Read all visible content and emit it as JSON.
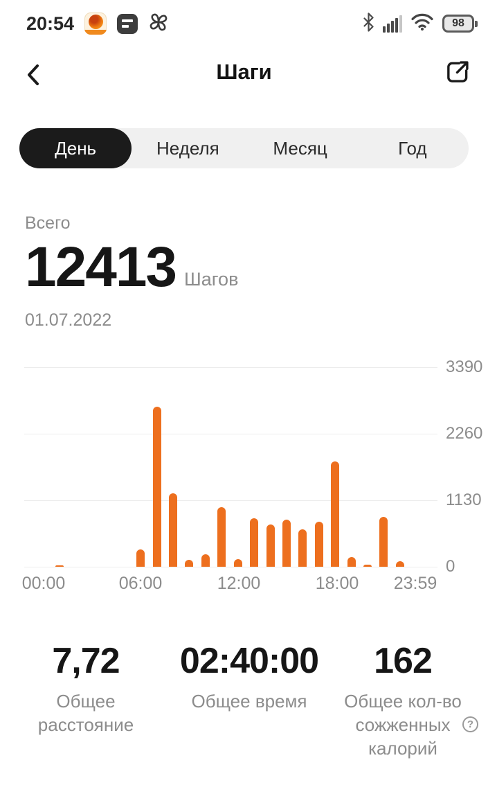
{
  "status_bar": {
    "time": "20:54",
    "battery_percent": "98",
    "icons_left": [
      "app-notification-icon",
      "messages-icon",
      "fan-icon"
    ],
    "icons_right": [
      "bluetooth-icon",
      "cell-signal-icon",
      "wifi-icon",
      "battery-icon"
    ]
  },
  "header": {
    "title": "Шаги",
    "back_icon": "back-chevron-icon",
    "share_icon": "share-icon"
  },
  "tabs": {
    "items": [
      {
        "label": "День",
        "selected": true
      },
      {
        "label": "Неделя",
        "selected": false
      },
      {
        "label": "Месяц",
        "selected": false
      },
      {
        "label": "Год",
        "selected": false
      }
    ]
  },
  "summary": {
    "label": "Всего",
    "total_steps": "12413",
    "unit": "Шагов",
    "date": "01.07.2022"
  },
  "chart_data": {
    "type": "bar",
    "x_unit": "hour_of_day",
    "x": [
      0,
      1,
      2,
      3,
      4,
      5,
      6,
      7,
      8,
      9,
      10,
      11,
      12,
      13,
      14,
      15,
      16,
      17,
      18,
      19,
      20,
      21,
      22,
      23
    ],
    "values": [
      0,
      13,
      0,
      0,
      0,
      0,
      290,
      2720,
      1250,
      120,
      210,
      1010,
      130,
      825,
      720,
      800,
      640,
      765,
      1790,
      160,
      30,
      850,
      90,
      0
    ],
    "y_ticks": [
      0,
      1130,
      2260,
      3390
    ],
    "x_tick_labels": [
      "00:00",
      "06:00",
      "12:00",
      "18:00",
      "23:59"
    ],
    "ylim": [
      0,
      3390
    ],
    "bar_color": "#ED6F1E",
    "grid": "horizontal",
    "y_axis_position": "right",
    "legend": "none"
  },
  "stats": {
    "items": [
      {
        "value": "7,72",
        "label": "Общее расстояние",
        "help_icon": false
      },
      {
        "value": "02:40:00",
        "label": "Общее время",
        "help_icon": false
      },
      {
        "value": "162",
        "label": "Общее кол-во сожженных калорий",
        "help_icon": true
      }
    ]
  },
  "colors": {
    "accent_orange": "#ED6F1E",
    "selected_tab_bg": "#1B1B1B",
    "tab_bar_bg": "#F0F0F0",
    "muted_text": "#8C8C8C",
    "primary_text": "#161616",
    "gridline": "#ECECEC"
  }
}
